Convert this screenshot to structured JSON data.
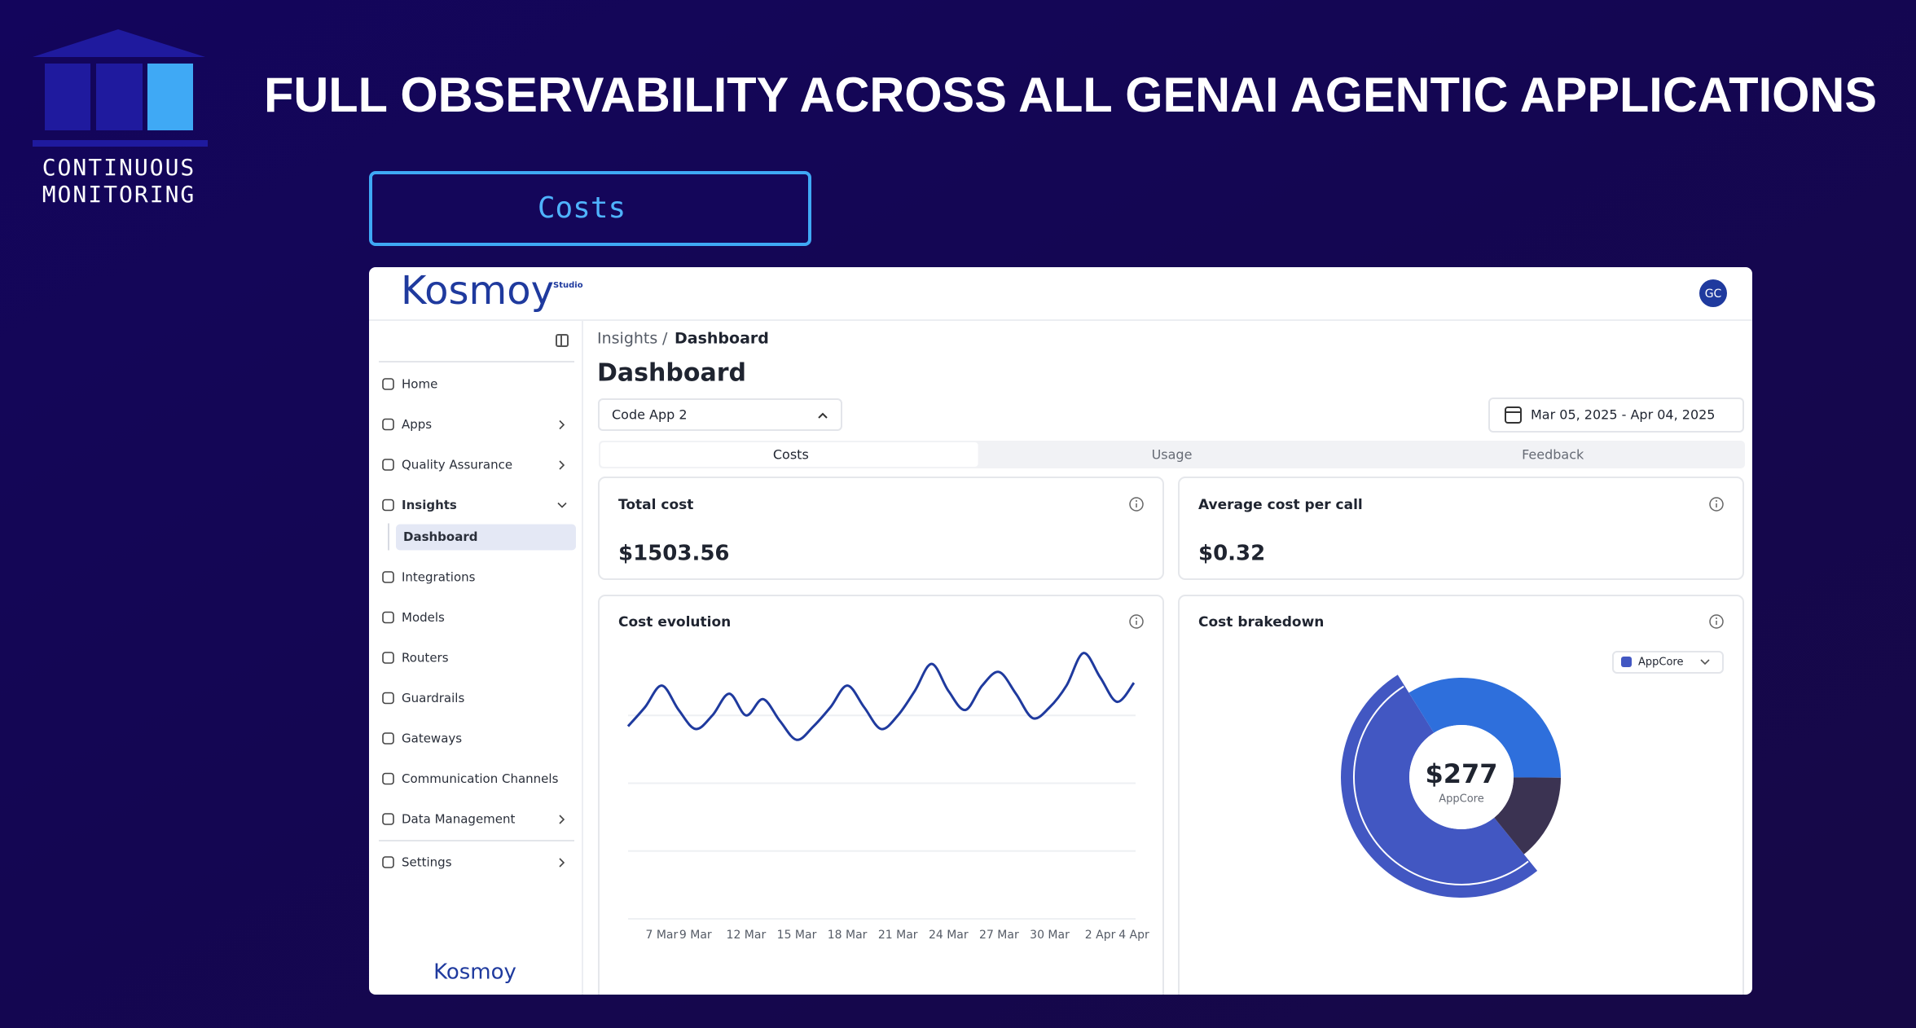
{
  "slide": {
    "badge": [
      "CONTINUOUS",
      "MONITORING"
    ],
    "title": "FULL OBSERVABILITY ACROSS ALL GENAI AGENTIC APPLICATIONS",
    "section": "Costs"
  },
  "app": {
    "brand": "Kosmoy",
    "brand_tag": "Studio",
    "avatar": "GC",
    "nav": [
      {
        "label": "Home"
      },
      {
        "label": "Apps",
        "expandable": true
      },
      {
        "label": "Quality Assurance",
        "expandable": true
      },
      {
        "label": "Insights",
        "expanded": true,
        "children": [
          {
            "label": "Dashboard",
            "active": true
          }
        ]
      },
      {
        "label": "Integrations"
      },
      {
        "label": "Models"
      },
      {
        "label": "Routers"
      },
      {
        "label": "Guardrails"
      },
      {
        "label": "Gateways"
      },
      {
        "label": "Communication Channels"
      },
      {
        "label": "Data Management",
        "expandable": true
      }
    ],
    "nav_bottom": [
      {
        "label": "Settings",
        "expandable": true
      }
    ],
    "footer_brand": "Kosmoy",
    "breadcrumb": [
      "Insights",
      "Dashboard"
    ],
    "breadcrumb_separator": "/",
    "heading": "Dashboard",
    "app_selector": "Code App 2",
    "date_range": "Mar 05, 2025 - Apr 04, 2025",
    "tabs": [
      {
        "label": "Costs",
        "active": true
      },
      {
        "label": "Usage"
      },
      {
        "label": "Feedback"
      }
    ],
    "kpis": [
      {
        "title": "Total cost",
        "value": "$1503.56"
      },
      {
        "title": "Average cost per call",
        "value": "$0.32"
      }
    ]
  },
  "chart_data": [
    {
      "type": "line",
      "title": "Cost evolution",
      "categories": [
        null,
        null,
        "7 Mar",
        null,
        "9 Mar",
        null,
        null,
        "12 Mar",
        null,
        null,
        "15 Mar",
        null,
        null,
        "18 Mar",
        null,
        null,
        "21 Mar",
        null,
        null,
        "24 Mar",
        null,
        null,
        "27 Mar",
        null,
        null,
        "30 Mar",
        null,
        null,
        "2 Apr",
        null,
        "4 Apr"
      ],
      "values": [
        71,
        78,
        86,
        77,
        70,
        75,
        83,
        75,
        81,
        73,
        66,
        71,
        78,
        86,
        78,
        70,
        75,
        84,
        94,
        84,
        77,
        86,
        91,
        83,
        74,
        78,
        86,
        98,
        89,
        80,
        87
      ],
      "color": "#1f3a9e",
      "ylim": [
        0,
        100
      ],
      "grid": true
    },
    {
      "type": "pie",
      "title": "Cost brakedown",
      "categories": [
        "AppCore",
        null,
        null
      ],
      "values": [
        277,
        181,
        75
      ],
      "value_labels": [
        "$277",
        null,
        null
      ],
      "colors": [
        "#4257c2",
        "#2e6fdc",
        "#3b3352"
      ],
      "legend": "top-right"
    }
  ]
}
